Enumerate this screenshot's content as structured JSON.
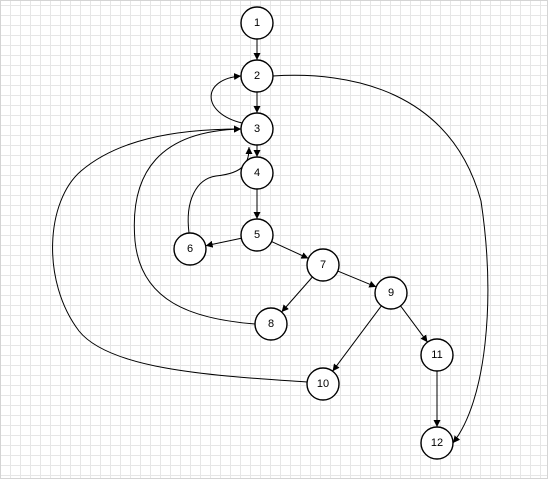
{
  "diagram": {
    "nodes": [
      {
        "id": "1",
        "label": "1"
      },
      {
        "id": "2",
        "label": "2"
      },
      {
        "id": "3",
        "label": "3"
      },
      {
        "id": "4",
        "label": "4"
      },
      {
        "id": "5",
        "label": "5"
      },
      {
        "id": "6",
        "label": "6"
      },
      {
        "id": "7",
        "label": "7"
      },
      {
        "id": "8",
        "label": "8"
      },
      {
        "id": "9",
        "label": "9"
      },
      {
        "id": "10",
        "label": "10"
      },
      {
        "id": "11",
        "label": "11"
      },
      {
        "id": "12",
        "label": "12"
      }
    ],
    "edges": [
      {
        "from": "1",
        "to": "2"
      },
      {
        "from": "2",
        "to": "3"
      },
      {
        "from": "3",
        "to": "2"
      },
      {
        "from": "2",
        "to": "12"
      },
      {
        "from": "3",
        "to": "4"
      },
      {
        "from": "4",
        "to": "5"
      },
      {
        "from": "5",
        "to": "6"
      },
      {
        "from": "6",
        "to": "3"
      },
      {
        "from": "5",
        "to": "7"
      },
      {
        "from": "7",
        "to": "8"
      },
      {
        "from": "8",
        "to": "3"
      },
      {
        "from": "7",
        "to": "9"
      },
      {
        "from": "9",
        "to": "10"
      },
      {
        "from": "10",
        "to": "3"
      },
      {
        "from": "9",
        "to": "11"
      },
      {
        "from": "11",
        "to": "12"
      }
    ],
    "colors": {
      "stroke": "#000000",
      "fill": "#ffffff",
      "grid": "#e6e6e6"
    }
  }
}
